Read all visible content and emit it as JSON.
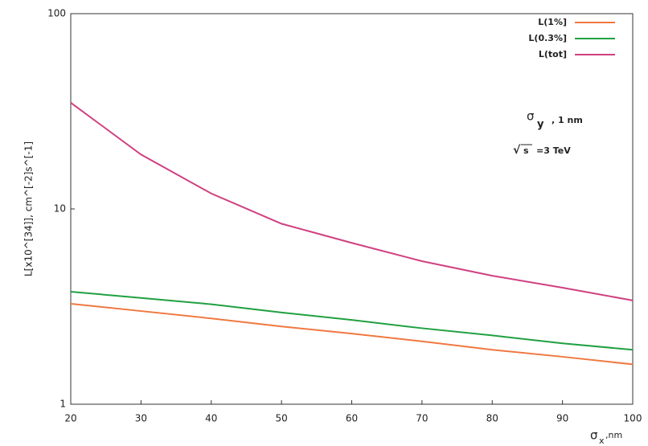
{
  "chart_data": {
    "type": "line",
    "y_label": "L[x10^[34]], cm^[-2]s^[-1]",
    "x_label": {
      "symbol": "σ",
      "subscript": "x",
      "text": ",nm"
    },
    "annotations": [
      {
        "symbol": "σ",
        "subscript": "y",
        "text": ", 1 nm"
      },
      {
        "radical": "√",
        "radicand": "s",
        "text": "=3 TeV"
      }
    ],
    "x": [
      20,
      30,
      40,
      50,
      60,
      70,
      80,
      90,
      100
    ],
    "series": [
      {
        "name": "L(1%]",
        "color": "#f07840",
        "values": [
          3.27,
          3.0,
          2.75,
          2.5,
          2.3,
          2.1,
          1.9,
          1.75,
          1.6
        ]
      },
      {
        "name": "L(0.3%]",
        "color": "#20a040",
        "values": [
          3.77,
          3.5,
          3.25,
          2.95,
          2.7,
          2.45,
          2.25,
          2.05,
          1.9
        ]
      },
      {
        "name": "L(tot]",
        "color": "#d04080",
        "values": [
          35,
          19,
          12,
          8.4,
          6.7,
          5.4,
          4.55,
          3.95,
          3.4
        ]
      }
    ],
    "xlim": [
      20,
      100
    ],
    "xticks": [
      20,
      30,
      40,
      50,
      60,
      70,
      80,
      90,
      100
    ],
    "ylim": [
      1,
      100
    ],
    "yticks": [
      1,
      10,
      100
    ],
    "yscale": "log"
  }
}
